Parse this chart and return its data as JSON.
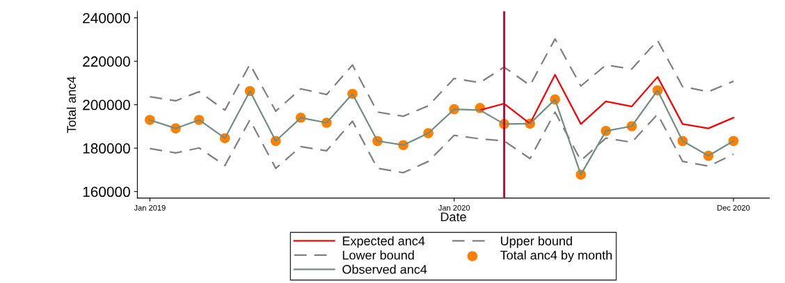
{
  "chart_data": {
    "type": "line",
    "xlabel": "Date",
    "ylabel": "Total anc4",
    "x": [
      "2019-01",
      "2019-02",
      "2019-03",
      "2019-04",
      "2019-05",
      "2019-06",
      "2019-07",
      "2019-08",
      "2019-09",
      "2019-10",
      "2019-11",
      "2019-12",
      "2020-01",
      "2020-02",
      "2020-03",
      "2020-04",
      "2020-05",
      "2020-06",
      "2020-07",
      "2020-08",
      "2020-09",
      "2020-10",
      "2020-11",
      "2020-12"
    ],
    "series": [
      {
        "name": "Expected anc4",
        "color": "#ff0000",
        "line_style": "solid",
        "values": [
          null,
          null,
          null,
          null,
          null,
          null,
          null,
          null,
          null,
          null,
          null,
          null,
          null,
          197500,
          200500,
          191300,
          213800,
          191100,
          201500,
          199200,
          212800,
          191100,
          189100,
          194000
        ]
      },
      {
        "name": "Lower bound",
        "color": "#808080",
        "line_style": "dashed",
        "values": [
          179800,
          177800,
          180100,
          172000,
          193000,
          170700,
          180700,
          178800,
          192400,
          170700,
          168700,
          173900,
          185900,
          184300,
          183300,
          175200,
          196600,
          174300,
          184600,
          182700,
          195600,
          173900,
          171700,
          177200
        ]
      },
      {
        "name": "Observed anc4",
        "color": "#6f8f82",
        "line_style": "solid",
        "values": [
          193000,
          189100,
          193000,
          184600,
          206300,
          183300,
          194000,
          191700,
          205000,
          183300,
          181400,
          186900,
          197900,
          197500,
          191100,
          191300,
          202400,
          167800,
          187900,
          190100,
          206600,
          183300,
          176500,
          183300
        ]
      },
      {
        "name": "Upper bound",
        "color": "#808080",
        "line_style": "dashed",
        "values": [
          203700,
          201800,
          206000,
          197500,
          218600,
          197000,
          207300,
          204700,
          218300,
          196600,
          194700,
          199500,
          212100,
          210200,
          217300,
          208900,
          230300,
          208600,
          218300,
          216400,
          229600,
          208300,
          206000,
          210800
        ]
      },
      {
        "name": "Total anc4 by month",
        "type": "scatter",
        "marker": "circle",
        "color": "#ff8000",
        "values": [
          193000,
          189100,
          193000,
          184600,
          206300,
          183300,
          194000,
          191700,
          205000,
          183300,
          181400,
          186900,
          197900,
          198500,
          191100,
          191300,
          202400,
          167800,
          187900,
          190100,
          206600,
          183300,
          176500,
          183300
        ]
      }
    ],
    "ref_lines": [
      {
        "axis": "x",
        "value": "2020-03",
        "color": "#c0002a"
      }
    ],
    "xlim": [
      "2018-12-17",
      "2021-01-13"
    ],
    "xticks": [
      {
        "value": "2019-01",
        "label": "Jan 2019"
      },
      {
        "value": "2020-01",
        "label": "Jan 2020"
      },
      {
        "value": "2020-12",
        "label": "Dec 2020"
      }
    ],
    "ylim": [
      157000,
      243000
    ],
    "yticks": [
      160000,
      180000,
      200000,
      220000,
      240000
    ],
    "grid": false,
    "legend": "bottom"
  }
}
